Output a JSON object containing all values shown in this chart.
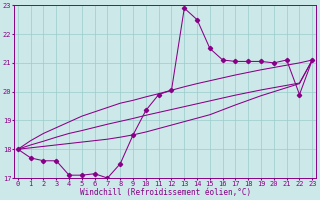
{
  "xlabel": "Windchill (Refroidissement éolien,°C)",
  "x_hours": [
    0,
    1,
    2,
    3,
    4,
    5,
    6,
    7,
    8,
    9,
    10,
    11,
    12,
    13,
    14,
    15,
    16,
    17,
    18,
    19,
    20,
    21,
    22,
    23
  ],
  "main_line": [
    18.0,
    17.7,
    17.6,
    17.6,
    17.1,
    17.1,
    17.15,
    17.0,
    17.5,
    18.5,
    19.35,
    19.9,
    20.05,
    22.9,
    22.5,
    21.5,
    21.1,
    21.05,
    21.05,
    21.05,
    21.0,
    21.1,
    19.9,
    21.1
  ],
  "line2_straight": [
    18.0,
    18.3,
    18.55,
    18.75,
    18.95,
    19.15,
    19.3,
    19.45,
    19.6,
    19.7,
    19.82,
    19.93,
    20.05,
    20.17,
    20.28,
    20.38,
    20.48,
    20.58,
    20.67,
    20.76,
    20.84,
    20.92,
    21.0,
    21.1
  ],
  "line3_straight": [
    18.0,
    18.15,
    18.28,
    18.42,
    18.55,
    18.65,
    18.76,
    18.87,
    18.97,
    19.07,
    19.18,
    19.28,
    19.38,
    19.48,
    19.58,
    19.68,
    19.78,
    19.88,
    19.97,
    20.06,
    20.14,
    20.22,
    20.3,
    21.1
  ],
  "line4_straight": [
    18.0,
    18.05,
    18.1,
    18.15,
    18.2,
    18.25,
    18.3,
    18.35,
    18.42,
    18.5,
    18.6,
    18.72,
    18.84,
    18.96,
    19.08,
    19.2,
    19.37,
    19.54,
    19.7,
    19.86,
    20.0,
    20.14,
    20.28,
    21.1
  ],
  "bg_color": "#cde8e8",
  "line_color": "#880088",
  "grid_color": "#99cccc",
  "ylim": [
    17,
    23
  ],
  "xlim": [
    0,
    23
  ],
  "yticks": [
    17,
    18,
    19,
    20,
    21,
    22,
    23
  ],
  "xticks": [
    0,
    1,
    2,
    3,
    4,
    5,
    6,
    7,
    8,
    9,
    10,
    11,
    12,
    13,
    14,
    15,
    16,
    17,
    18,
    19,
    20,
    21,
    22,
    23
  ]
}
